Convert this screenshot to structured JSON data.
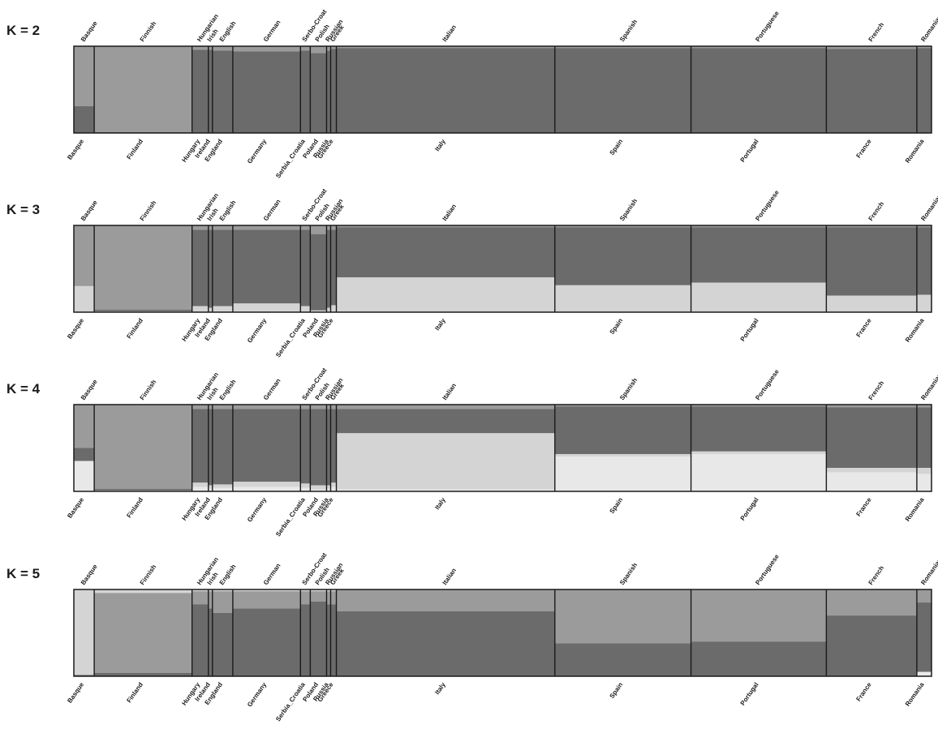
{
  "chart_data": {
    "type": "bar",
    "stacked": true,
    "populations": [
      {
        "top": "Basque",
        "bottom": "Basque",
        "n": 25
      },
      {
        "top": "Finnish",
        "bottom": "Finland",
        "n": 120
      },
      {
        "top": "Hungarian",
        "bottom": "Hungary",
        "n": 20
      },
      {
        "top": "Irish",
        "bottom": "Ireland",
        "n": 5
      },
      {
        "top": "English",
        "bottom": "England",
        "n": 25
      },
      {
        "top": "German",
        "bottom": "Germany",
        "n": 83
      },
      {
        "top": "Serbo-Croat",
        "bottom": "Serbia_Croatia",
        "n": 12
      },
      {
        "top": "Polish",
        "bottom": "Poland",
        "n": 20
      },
      {
        "top": "Russian",
        "bottom": "Russia",
        "n": 5
      },
      {
        "top": "Greek",
        "bottom": "Greece",
        "n": 7
      },
      {
        "top": "Italian",
        "bottom": "Italy",
        "n": 268
      },
      {
        "top": "Spanish",
        "bottom": "Spain",
        "n": 167
      },
      {
        "top": "Portuguese",
        "bottom": "Portugal",
        "n": 166
      },
      {
        "top": "French",
        "bottom": "France",
        "n": 111
      },
      {
        "top": "Romanian",
        "bottom": "Romania",
        "n": 18
      }
    ],
    "colors": {
      "dark": "#6b6b6b",
      "mid": "#9b9b9b",
      "light": "#d4d4d4",
      "pale": "#e8e8e8",
      "border": "#1a1a1a"
    },
    "panels": [
      {
        "label": "K = 2",
        "order": [
          "mid",
          "dark"
        ],
        "props": [
          [
            0.69,
            0.31
          ],
          [
            0.99,
            0.01
          ],
          [
            0.04,
            0.96
          ],
          [
            0.04,
            0.96
          ],
          [
            0.05,
            0.95
          ],
          [
            0.06,
            0.94
          ],
          [
            0.05,
            0.95
          ],
          [
            0.08,
            0.92
          ],
          [
            0.05,
            0.95
          ],
          [
            0.03,
            0.97
          ],
          [
            0.02,
            0.98
          ],
          [
            0.02,
            0.98
          ],
          [
            0.02,
            0.98
          ],
          [
            0.03,
            0.97
          ],
          [
            0.02,
            0.98
          ]
        ]
      },
      {
        "label": "K = 3",
        "order": [
          "mid",
          "dark",
          "light"
        ],
        "props": [
          [
            0.7,
            0.0,
            0.3
          ],
          [
            0.97,
            0.02,
            0.01
          ],
          [
            0.05,
            0.88,
            0.07
          ],
          [
            0.05,
            0.9,
            0.05
          ],
          [
            0.05,
            0.88,
            0.07
          ],
          [
            0.05,
            0.85,
            0.1
          ],
          [
            0.05,
            0.88,
            0.07
          ],
          [
            0.1,
            0.88,
            0.02
          ],
          [
            0.05,
            0.9,
            0.05
          ],
          [
            0.05,
            0.87,
            0.08
          ],
          [
            0.02,
            0.58,
            0.4
          ],
          [
            0.02,
            0.67,
            0.31
          ],
          [
            0.02,
            0.64,
            0.34
          ],
          [
            0.02,
            0.79,
            0.19
          ],
          [
            0.02,
            0.78,
            0.2
          ]
        ]
      },
      {
        "label": "K = 4",
        "order": [
          "mid",
          "dark",
          "light",
          "pale"
        ],
        "props": [
          [
            0.5,
            0.15,
            0.0,
            0.35
          ],
          [
            0.97,
            0.02,
            0.0,
            0.01
          ],
          [
            0.05,
            0.85,
            0.05,
            0.05
          ],
          [
            0.05,
            0.88,
            0.04,
            0.03
          ],
          [
            0.05,
            0.87,
            0.04,
            0.04
          ],
          [
            0.05,
            0.84,
            0.06,
            0.05
          ],
          [
            0.05,
            0.86,
            0.05,
            0.04
          ],
          [
            0.05,
            0.88,
            0.05,
            0.02
          ],
          [
            0.05,
            0.88,
            0.04,
            0.03
          ],
          [
            0.05,
            0.85,
            0.05,
            0.05
          ],
          [
            0.05,
            0.28,
            0.65,
            0.02
          ],
          [
            0.02,
            0.55,
            0.03,
            0.4
          ],
          [
            0.02,
            0.52,
            0.03,
            0.43
          ],
          [
            0.03,
            0.7,
            0.05,
            0.22
          ],
          [
            0.03,
            0.7,
            0.07,
            0.2
          ]
        ]
      },
      {
        "label": "K = 5",
        "order": [
          "light",
          "mid",
          "dark",
          "pale"
        ],
        "props": [
          [
            0.98,
            0.01,
            0.01,
            0.0
          ],
          [
            0.04,
            0.92,
            0.04,
            0.0
          ],
          [
            0.02,
            0.15,
            0.83,
            0.0
          ],
          [
            0.02,
            0.2,
            0.78,
            0.0
          ],
          [
            0.02,
            0.25,
            0.73,
            0.0
          ],
          [
            0.02,
            0.2,
            0.78,
            0.0
          ],
          [
            0.02,
            0.15,
            0.83,
            0.0
          ],
          [
            0.02,
            0.12,
            0.86,
            0.0
          ],
          [
            0.02,
            0.15,
            0.83,
            0.0
          ],
          [
            0.02,
            0.15,
            0.83,
            0.0
          ],
          [
            0.0,
            0.25,
            0.75,
            0.0
          ],
          [
            0.0,
            0.62,
            0.38,
            0.0
          ],
          [
            0.0,
            0.6,
            0.4,
            0.0
          ],
          [
            0.0,
            0.3,
            0.7,
            0.0
          ],
          [
            0.0,
            0.15,
            0.8,
            0.05
          ]
        ]
      }
    ],
    "title": "",
    "xlabel": "",
    "ylabel": "",
    "ylim": [
      0,
      1
    ]
  }
}
